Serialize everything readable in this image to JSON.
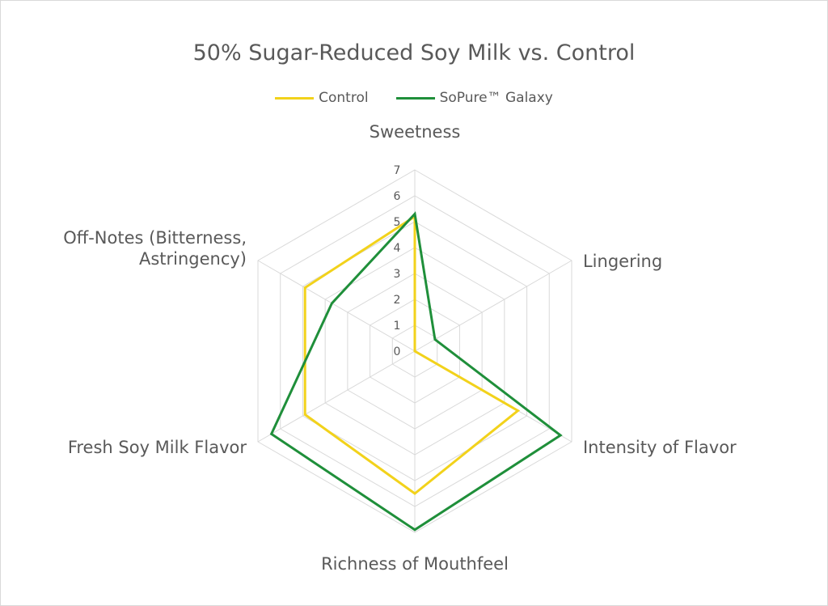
{
  "chart_data": {
    "type": "radar",
    "title": "50% Sugar-Reduced Soy Milk vs. Control",
    "categories": [
      "Sweetness",
      "Lingering",
      "Intensity of Flavor",
      "Richness of Mouthfeel",
      "Fresh Soy Milk Flavor",
      "Off-Notes (Bitterness, Astringency)"
    ],
    "category_lines": [
      [
        "Sweetness"
      ],
      [
        "Lingering"
      ],
      [
        "Intensity of Flavor"
      ],
      [
        "Richness of Mouthfeel"
      ],
      [
        "Fresh Soy Milk Flavor"
      ],
      [
        "Off-Notes (Bitterness,",
        "Astringency)"
      ]
    ],
    "rlim": [
      0,
      7
    ],
    "ticks": [
      "0",
      "1",
      "2",
      "3",
      "4",
      "5",
      "6",
      "7"
    ],
    "grid": true,
    "legend_position": "top",
    "series": [
      {
        "name": "Control",
        "color": "#f2d21b",
        "values": [
          5.2,
          0,
          4.6,
          5.5,
          4.9,
          4.9
        ]
      },
      {
        "name": "SoPure™ Galaxy",
        "color": "#1f8f3a",
        "values": [
          5.3,
          0.9,
          6.5,
          6.9,
          6.4,
          3.7
        ]
      }
    ]
  }
}
